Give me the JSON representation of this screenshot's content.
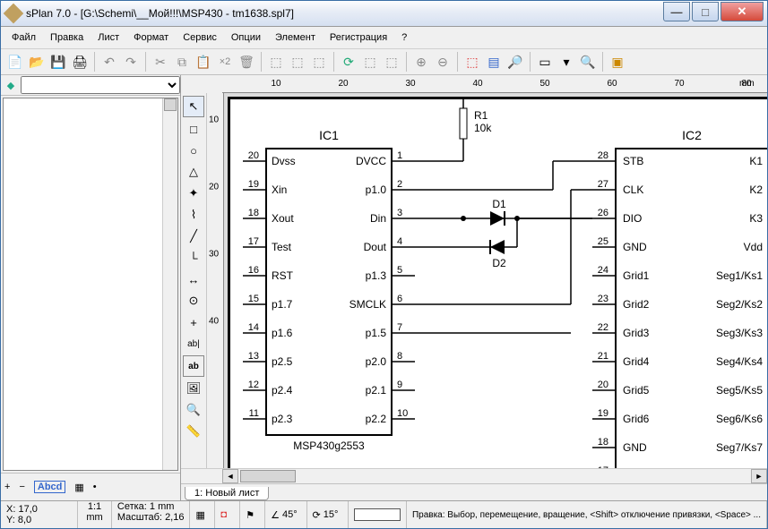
{
  "window": {
    "title": "sPlan 7.0 - [G:\\Schemi\\__Мой!!!\\MSP430 - tm1638.spl7]"
  },
  "menu": [
    "Файл",
    "Правка",
    "Лист",
    "Формат",
    "Сервис",
    "Опции",
    "Элемент",
    "Регистрация",
    "?"
  ],
  "toolbar_icons": [
    "📄",
    "📂",
    "💾",
    "🖨",
    "|",
    "↶",
    "↷",
    "|",
    "✂",
    "📋",
    "📄",
    "×2",
    "🗑",
    "|",
    "⬚",
    "⬚",
    "⬚",
    "|",
    "⟳",
    "⬚",
    "⬚",
    "|",
    "⊕",
    "⊖",
    "|",
    "⬚",
    "📋",
    "🔍",
    "|",
    "▭",
    "▾",
    "🔎",
    "|",
    "▣"
  ],
  "left": {
    "dropdown": "",
    "status_plus": "+",
    "status_minus": "−",
    "status_abcd": "Abcd",
    "status_grid": "▦",
    "status_dot": "•",
    "coord_x_lbl": "X:",
    "coord_x": "17,0",
    "coord_y_lbl": "Y:",
    "coord_y": "8,0",
    "ratio": "1:1",
    "unit": "mm"
  },
  "tools": [
    "↖",
    "□",
    "○",
    "△",
    "✦",
    "⌇",
    "⎯",
    "↳",
    "|↔|",
    "⍂",
    "+",
    "ab|",
    "ab",
    "🖼",
    "🔍",
    "📏"
  ],
  "ruler_h": {
    "ticks": [
      10,
      20,
      30,
      40,
      50,
      60,
      70,
      80
    ],
    "unit": "mm"
  },
  "ruler_v": {
    "ticks": [
      10,
      20,
      30,
      40
    ]
  },
  "schematic": {
    "ic1": {
      "ref": "IC1",
      "name": "MSP430g2553",
      "left_pins": [
        [
          "20",
          "Dvss"
        ],
        [
          "19",
          "Xin"
        ],
        [
          "18",
          "Xout"
        ],
        [
          "17",
          "Test"
        ],
        [
          "16",
          "RST"
        ],
        [
          "15",
          "p1.7"
        ],
        [
          "14",
          "p1.6"
        ],
        [
          "13",
          "p2.5"
        ],
        [
          "12",
          "p2.4"
        ],
        [
          "11",
          "p2.3"
        ]
      ],
      "right_pins": [
        [
          "1",
          "DVCC"
        ],
        [
          "2",
          "p1.0"
        ],
        [
          "3",
          "Din"
        ],
        [
          "4",
          "Dout"
        ],
        [
          "5",
          "p1.3"
        ],
        [
          "6",
          "SMCLK"
        ],
        [
          "7",
          "p1.5"
        ],
        [
          "8",
          "p2.0"
        ],
        [
          "9",
          "p2.1"
        ],
        [
          "10",
          "p2.2"
        ]
      ]
    },
    "ic2": {
      "ref": "IC2",
      "left_pins": [
        [
          "28",
          "STB"
        ],
        [
          "27",
          "CLK"
        ],
        [
          "26",
          "DIO"
        ],
        [
          "25",
          "GND"
        ],
        [
          "24",
          "Grid1"
        ],
        [
          "23",
          "Grid2"
        ],
        [
          "22",
          "Grid3"
        ],
        [
          "21",
          "Grid4"
        ],
        [
          "20",
          "Grid5"
        ],
        [
          "19",
          "Grid6"
        ],
        [
          "18",
          "GND"
        ],
        [
          "17",
          ""
        ]
      ],
      "right_pins": [
        [
          "",
          "K1"
        ],
        [
          "",
          "K2"
        ],
        [
          "",
          "K3"
        ],
        [
          "",
          "Vdd"
        ],
        [
          "",
          "Seg1/Ks1"
        ],
        [
          "",
          "Seg2/Ks2"
        ],
        [
          "",
          "Seg3/Ks3"
        ],
        [
          "",
          "Seg4/Ks4"
        ],
        [
          "",
          "Seg5/Ks5"
        ],
        [
          "",
          "Seg6/Ks6"
        ],
        [
          "",
          "Seg7/Ks7"
        ],
        [
          "",
          ""
        ]
      ]
    },
    "r1": {
      "ref": "R1",
      "val": "10k"
    },
    "d1": "D1",
    "d2": "D2"
  },
  "tabs": {
    "num": "1:",
    "name": "Новый лист"
  },
  "status": {
    "grid_lbl": "Сетка:",
    "grid": "1 mm",
    "scale_lbl": "Масштаб:",
    "scale": "2,16",
    "angle1": "45°",
    "angle2": "15°",
    "hint": "Правка: Выбор, перемещение, вращение,  <Shift> отключение привязки, <Space> ..."
  },
  "colors": {
    "accent": "#3a6ea5",
    "sheet": "#ffffff",
    "line": "#000000"
  }
}
